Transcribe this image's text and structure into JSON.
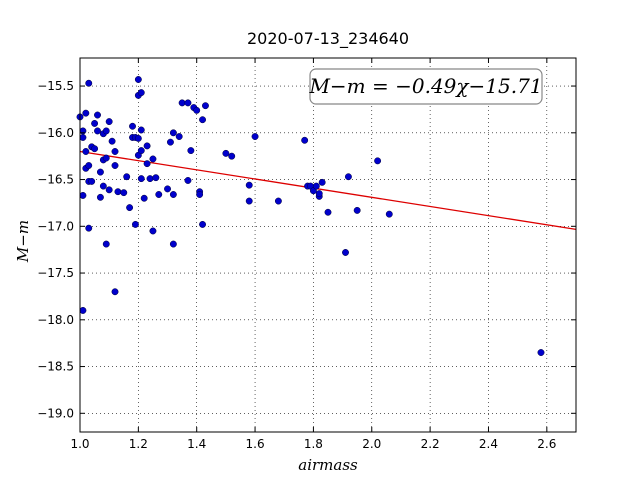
{
  "chart_data": {
    "type": "scatter",
    "title": "2020-07-13_234640",
    "xlabel": "airmass",
    "ylabel": "M−m",
    "xlim": [
      1.0,
      2.7
    ],
    "ylim": [
      -19.2,
      -15.2
    ],
    "y_inverted": true,
    "grid": true,
    "x_ticks": [
      1.0,
      1.2,
      1.4,
      1.6,
      1.8,
      2.0,
      2.2,
      2.4,
      2.6
    ],
    "x_tick_labels": [
      "1.0",
      "1.2",
      "1.4",
      "1.6",
      "1.8",
      "2.0",
      "2.2",
      "2.4",
      "2.6"
    ],
    "y_ticks": [
      -15.5,
      -16.0,
      -16.5,
      -17.0,
      -17.5,
      -18.0,
      -18.5,
      -19.0
    ],
    "y_tick_labels": [
      "−15.5",
      "−16.0",
      "−16.5",
      "−17.0",
      "−17.5",
      "−18.0",
      "−18.5",
      "−19.0"
    ],
    "annotation": "M−m = −0.49χ−15.71",
    "colors": {
      "points": "#0000cc",
      "fit_line": "#dd0000"
    },
    "fit": {
      "slope": -0.49,
      "intercept": -15.71,
      "x_range": [
        1.0,
        2.7
      ]
    },
    "series": [
      {
        "points": [
          [
            1.0,
            -15.83
          ],
          [
            1.01,
            -16.05
          ],
          [
            1.01,
            -16.67
          ],
          [
            1.01,
            -17.9
          ],
          [
            1.01,
            -15.98
          ],
          [
            1.02,
            -15.79
          ],
          [
            1.02,
            -16.2
          ],
          [
            1.02,
            -16.38
          ],
          [
            1.03,
            -16.35
          ],
          [
            1.03,
            -16.52
          ],
          [
            1.03,
            -17.02
          ],
          [
            1.03,
            -15.47
          ],
          [
            1.04,
            -16.15
          ],
          [
            1.04,
            -16.52
          ],
          [
            1.05,
            -15.9
          ],
          [
            1.05,
            -16.17
          ],
          [
            1.06,
            -15.81
          ],
          [
            1.06,
            -15.98
          ],
          [
            1.07,
            -16.42
          ],
          [
            1.07,
            -16.69
          ],
          [
            1.08,
            -16.01
          ],
          [
            1.08,
            -16.29
          ],
          [
            1.08,
            -16.57
          ],
          [
            1.09,
            -15.98
          ],
          [
            1.09,
            -16.27
          ],
          [
            1.09,
            -17.19
          ],
          [
            1.1,
            -15.88
          ],
          [
            1.1,
            -16.61
          ],
          [
            1.11,
            -16.09
          ],
          [
            1.12,
            -16.2
          ],
          [
            1.12,
            -16.35
          ],
          [
            1.12,
            -17.7
          ],
          [
            1.13,
            -16.63
          ],
          [
            1.15,
            -16.64
          ],
          [
            1.16,
            -16.47
          ],
          [
            1.17,
            -16.8
          ],
          [
            1.18,
            -16.05
          ],
          [
            1.18,
            -15.93
          ],
          [
            1.19,
            -16.98
          ],
          [
            1.19,
            -16.05
          ],
          [
            1.2,
            -15.43
          ],
          [
            1.2,
            -15.6
          ],
          [
            1.2,
            -16.06
          ],
          [
            1.2,
            -16.24
          ],
          [
            1.21,
            -15.97
          ],
          [
            1.21,
            -15.57
          ],
          [
            1.21,
            -16.19
          ],
          [
            1.21,
            -16.49
          ],
          [
            1.22,
            -16.7
          ],
          [
            1.23,
            -16.33
          ],
          [
            1.23,
            -16.14
          ],
          [
            1.24,
            -16.49
          ],
          [
            1.25,
            -16.28
          ],
          [
            1.25,
            -17.05
          ],
          [
            1.26,
            -16.48
          ],
          [
            1.27,
            -16.66
          ],
          [
            1.3,
            -16.6
          ],
          [
            1.31,
            -16.1
          ],
          [
            1.32,
            -16.0
          ],
          [
            1.32,
            -16.66
          ],
          [
            1.32,
            -17.19
          ],
          [
            1.34,
            -16.04
          ],
          [
            1.35,
            -15.68
          ],
          [
            1.37,
            -16.51
          ],
          [
            1.37,
            -15.68
          ],
          [
            1.38,
            -16.19
          ],
          [
            1.39,
            -15.73
          ],
          [
            1.4,
            -15.76
          ],
          [
            1.41,
            -16.63
          ],
          [
            1.41,
            -16.66
          ],
          [
            1.42,
            -15.86
          ],
          [
            1.42,
            -16.98
          ],
          [
            1.43,
            -15.71
          ],
          [
            1.5,
            -16.22
          ],
          [
            1.52,
            -16.25
          ],
          [
            1.58,
            -16.73
          ],
          [
            1.58,
            -16.56
          ],
          [
            1.6,
            -16.04
          ],
          [
            1.68,
            -16.73
          ],
          [
            1.77,
            -16.08
          ],
          [
            1.78,
            -16.57
          ],
          [
            1.79,
            -16.57
          ],
          [
            1.8,
            -16.62
          ],
          [
            1.81,
            -16.57
          ],
          [
            1.82,
            -16.68
          ],
          [
            1.82,
            -16.65
          ],
          [
            1.83,
            -16.53
          ],
          [
            1.85,
            -16.85
          ],
          [
            1.91,
            -17.28
          ],
          [
            1.92,
            -16.47
          ],
          [
            1.95,
            -16.83
          ],
          [
            2.02,
            -16.3
          ],
          [
            2.06,
            -16.87
          ],
          [
            2.58,
            -18.35
          ]
        ]
      }
    ]
  }
}
